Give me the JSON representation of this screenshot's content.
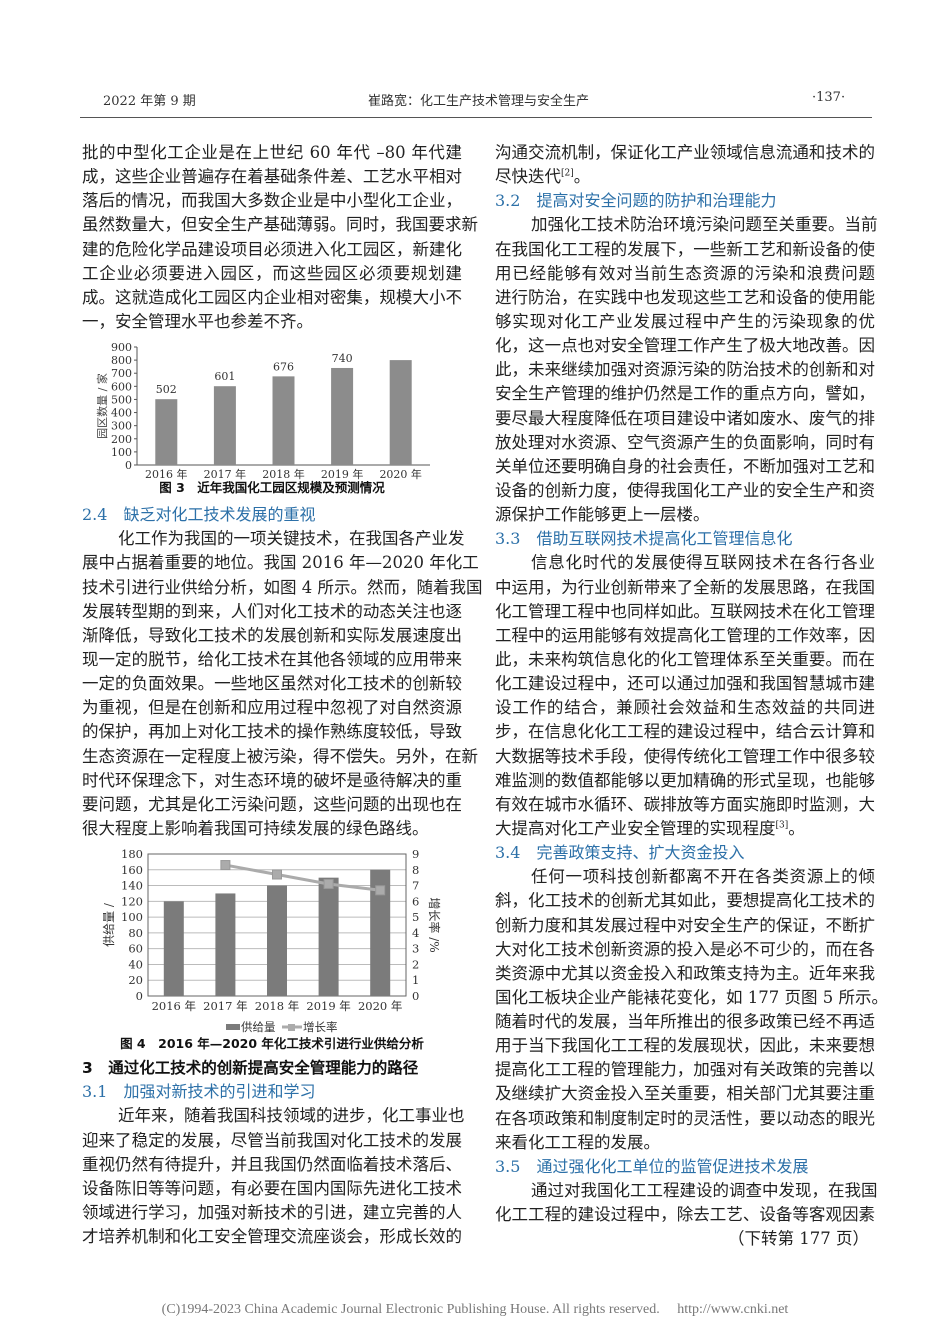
{
  "header": {
    "issue": "2022 年第 9 期",
    "title": "崔路宽：化工生产技术管理与安全生产",
    "page": "·137·"
  },
  "left_column": [
    {
      "kind": "para",
      "indent": false,
      "lines": [
        "批的中型化工企业是在上世纪 60 年代 –80 年代建",
        "成，这些企业普遍存在着基础条件差、工艺水平相对",
        "落后的情况，而我国大多数企业是中小型化工企业，",
        "虽然数量大，但安全生产基础薄弱。同时，我国要求新",
        "建的危险化学品建设项目必须进入化工园区，新建化",
        "工企业必须要进入园区，而这些园区必须要规划建",
        "成。这就造成化工园区内企业相对密集，规模大小不",
        "一，安全管理水平也参差不齐。"
      ]
    },
    {
      "kind": "fig",
      "chart": 0
    },
    {
      "kind": "h2",
      "text": "2.4　缺乏对化工技术发展的重视"
    },
    {
      "kind": "para",
      "indent": true,
      "lines": [
        "化工作为我国的一项关键技术，在我国各产业发",
        "展中占据着重要的地位。我国 2016 年—2020 年化工",
        "技术引进行业供给分析，如图 4 所示。然而，随着我国",
        "发展转型期的到来，人们对化工技术的动态关注也逐",
        "渐降低，导致化工技术的发展创新和实际发展速度出",
        "现一定的脱节，给化工技术在其他各领域的应用带来",
        "一定的负面效果。一些地区虽然对化工技术的创新较",
        "为重视，但是在创新和应用过程中忽视了对自然资源",
        "的保护，再加上对化工技术的操作熟练度较低，导致",
        "生态资源在一定程度上被污染，得不偿失。另外，在新",
        "时代环保理念下，对生态环境的破坏是亟待解决的重",
        "要问题，尤其是化工污染问题，这些问题的出现也在",
        "很大程度上影响着我国可持续发展的绿色路线。"
      ]
    },
    {
      "kind": "fig",
      "chart": 1
    },
    {
      "kind": "h1",
      "text": "3　通过化工技术的创新提高安全管理能力的路径"
    },
    {
      "kind": "h2",
      "text": "3.1　加强对新技术的引进和学习"
    },
    {
      "kind": "para",
      "indent": true,
      "open": true,
      "lines": [
        "近年来，随着我国科技领域的进步，化工事业也",
        "迎来了稳定的发展，尽管当前我国对化工技术的发展",
        "重视仍然有待提升，并且我国仍然面临着技术落后、",
        "设备陈旧等等问题，有必要在国内国际先进化工技术",
        "领域进行学习，加强对新技术的引进，建立完善的人",
        "才培养机制和化工安全管理交流座谈会，形成长效的"
      ]
    }
  ],
  "right_column": [
    {
      "kind": "para",
      "indent": false,
      "lines": [
        "沟通交流机制，保证化工产业领域信息流通和技术的",
        {
          "text": "尽快迭代",
          "sup": "[2]",
          "tail": "。"
        }
      ]
    },
    {
      "kind": "h2",
      "text": "3.2　提高对安全问题的防护和治理能力"
    },
    {
      "kind": "para",
      "indent": true,
      "lines": [
        "加强化工技术防治环境污染问题至关重要。当前",
        "在我国化工工程的发展下，一些新工艺和新设备的使",
        "用已经能够有效对当前生态资源的污染和浪费问题",
        "进行防治，在实践中也发现这些工艺和设备的使用能",
        "够实现对化工产业发展过程中产生的污染现象的优",
        "化，这一点也对安全管理工作产生了极大地改善。因",
        "此，未来继续加强对资源污染的防治技术的创新和对",
        "安全生产管理的维护仍然是工作的重点方向，譬如，",
        "要尽最大程度降低在项目建设中诸如废水、废气的排",
        "放处理对水资源、空气资源产生的负面影响，同时有",
        "关单位还要明确自身的社会责任，不断加强对工艺和",
        "设备的创新力度，使得我国化工产业的安全生产和资",
        "源保护工作能够更上一层楼。"
      ]
    },
    {
      "kind": "h2",
      "text": "3.3　借助互联网技术提高化工管理信息化"
    },
    {
      "kind": "para",
      "indent": true,
      "lines": [
        "信息化时代的发展使得互联网技术在各行各业",
        "中运用，为行业创新带来了全新的发展思路，在我国",
        "化工管理工程中也同样如此。互联网技术在化工管理",
        "工程中的运用能够有效提高化工管理的工作效率，因",
        "此，未来构筑信息化的化工管理体系至关重要。而在",
        "化工建设过程中，还可以通过加强和我国智慧城市建",
        "设工作的结合，兼顾社会效益和生态效益的共同进",
        "步，在信息化化工工程的建设过程中，结合云计算和",
        "大数据等技术手段，使得传统化工管理工作中很多较",
        "难监测的数值都能够以更加精确的形式呈现，也能够",
        "有效在城市水循环、碳排放等方面实施即时监测，大",
        {
          "text": "大提高对化工产业安全管理的实现程度",
          "sup": "[3]",
          "tail": "。"
        }
      ]
    },
    {
      "kind": "h2",
      "text": "3.4　完善政策支持、扩大资金投入"
    },
    {
      "kind": "para",
      "indent": true,
      "lines": [
        "任何一项科技创新都离不开在各类资源上的倾",
        "斜，化工技术的创新尤其如此，要想提高化工技术的",
        "创新力度和其发展过程中对安全生产的保证，不断扩",
        "大对化工技术创新资源的投入是必不可少的，而在各",
        "类资源中尤其以资金投入和政策支持为主。近年来我",
        "国化工板块企业产能裱花变化，如 177 页图 5 所示。",
        "随着时代的发展，当年所推出的很多政策已经不再适",
        "用于当下我国化工工程的发展现状，因此，未来要想",
        "提高化工工程的管理能力，加强对有关政策的完善以",
        "及继续扩大资金投入至关重要，相关部门尤其要注重",
        "在各项政策和制度制定时的灵活性，要以动态的眼光",
        "来看化工工程的发展。"
      ]
    },
    {
      "kind": "h2",
      "text": "3.5　通过强化化工单位的监管促进技术发展"
    },
    {
      "kind": "para",
      "indent": true,
      "open": true,
      "lines": [
        "通过对我国化工工程建设的调查中发现，在我国",
        "化工工程的建设过程中，除去工艺、设备等客观因素"
      ]
    },
    {
      "kind": "cont",
      "text": "（下转第 177 页）"
    }
  ],
  "chart_data": [
    {
      "type": "bar",
      "title": "图 3　近年我国化工园区规模及预测情况",
      "categories": [
        "2016 年",
        "2017 年",
        "2018 年",
        "2019 年",
        "2020 年"
      ],
      "values": [
        502,
        601,
        676,
        740,
        800
      ],
      "data_labels": [
        "502",
        "601",
        "676",
        "740",
        null
      ],
      "xlabel": "",
      "ylabel": "园区数量 / 家",
      "ylim": [
        0,
        900
      ],
      "yticks": [
        0,
        100,
        200,
        300,
        400,
        500,
        600,
        700,
        800,
        900
      ],
      "grid": false,
      "colors": {
        "bar": "#8c8c8c"
      }
    },
    {
      "type": "bar+line",
      "title": "图 4　2016 年—2020 年化工技术引进行业供给分析",
      "categories": [
        "2016 年",
        "2017 年",
        "2018 年",
        "2019 年",
        "2020 年"
      ],
      "series": [
        {
          "name": "供给量",
          "type": "bar",
          "axis": "left",
          "values": [
            120,
            130,
            140,
            150,
            160
          ]
        },
        {
          "name": "增长率",
          "type": "line",
          "axis": "right",
          "values": [
            null,
            8.3,
            7.7,
            7.1,
            6.7
          ]
        }
      ],
      "ylabel": "供给量 /",
      "y2label": "增长率 /%",
      "ylim": [
        0,
        180
      ],
      "y2lim": [
        0,
        9
      ],
      "yticks": [
        0,
        20,
        40,
        60,
        80,
        100,
        120,
        140,
        160,
        180
      ],
      "y2ticks": [
        0,
        1,
        2,
        3,
        4,
        5,
        6,
        7,
        8,
        9
      ],
      "grid": true,
      "legend": "bottom",
      "colors": {
        "bar": "#7b7b7b",
        "line": "#ababab"
      }
    }
  ],
  "footer": {
    "copyright": "(C)1994-2023 China Academic Journal Electronic Publishing House. All rights reserved.　 http://www.cnki.net"
  }
}
